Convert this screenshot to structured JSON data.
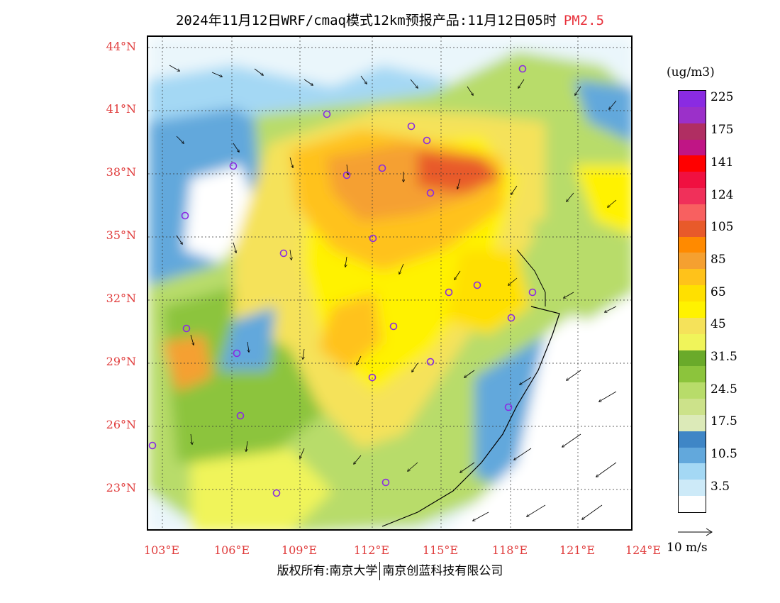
{
  "title": {
    "main": "2024年11月12日WRF/cmaq模式12km预报产品:11月12日05时",
    "species": "PM2.5",
    "species_color": "#e8323c"
  },
  "axes": {
    "lat_labels": [
      "44°N",
      "41°N",
      "38°N",
      "35°N",
      "32°N",
      "29°N",
      "26°N",
      "23°N"
    ],
    "lon_labels": [
      "103°E",
      "106°E",
      "109°E",
      "112°E",
      "115°E",
      "118°E",
      "121°E",
      "124°E"
    ],
    "label_color": "#e03c3c"
  },
  "legend": {
    "unit": "(ug/m3)",
    "levels": [
      {
        "label": "225",
        "color": "#8a2be2"
      },
      {
        "label": "",
        "color": "#9b30c9"
      },
      {
        "label": "175",
        "color": "#b02e62"
      },
      {
        "label": "",
        "color": "#c01585"
      },
      {
        "label": "141",
        "color": "#ff0000"
      },
      {
        "label": "",
        "color": "#f01040"
      },
      {
        "label": "124",
        "color": "#f0305a"
      },
      {
        "label": "",
        "color": "#f86060"
      },
      {
        "label": "105",
        "color": "#e85a2a"
      },
      {
        "label": "",
        "color": "#ff8a00"
      },
      {
        "label": "85",
        "color": "#f5a030"
      },
      {
        "label": "",
        "color": "#ffc21a"
      },
      {
        "label": "65",
        "color": "#ffe000"
      },
      {
        "label": "",
        "color": "#fff200"
      },
      {
        "label": "45",
        "color": "#f5e25a"
      },
      {
        "label": "",
        "color": "#f0f45a"
      },
      {
        "label": "31.5",
        "color": "#6aaa2a"
      },
      {
        "label": "",
        "color": "#8cc43c"
      },
      {
        "label": "24.5",
        "color": "#b8dc6a"
      },
      {
        "label": "",
        "color": "#cce28a"
      },
      {
        "label": "17.5",
        "color": "#dceab8"
      },
      {
        "label": "",
        "color": "#3f86c6"
      },
      {
        "label": "10.5",
        "color": "#62a8dc"
      },
      {
        "label": "",
        "color": "#a4d8f4"
      },
      {
        "label": "3.5",
        "color": "#cdeaf8"
      },
      {
        "label": "",
        "color": "#ffffff"
      }
    ]
  },
  "wind_reference": "10 m/s",
  "copyright": {
    "left": "版权所有:南京大学",
    "right": "南京创蓝科技有限公司"
  }
}
